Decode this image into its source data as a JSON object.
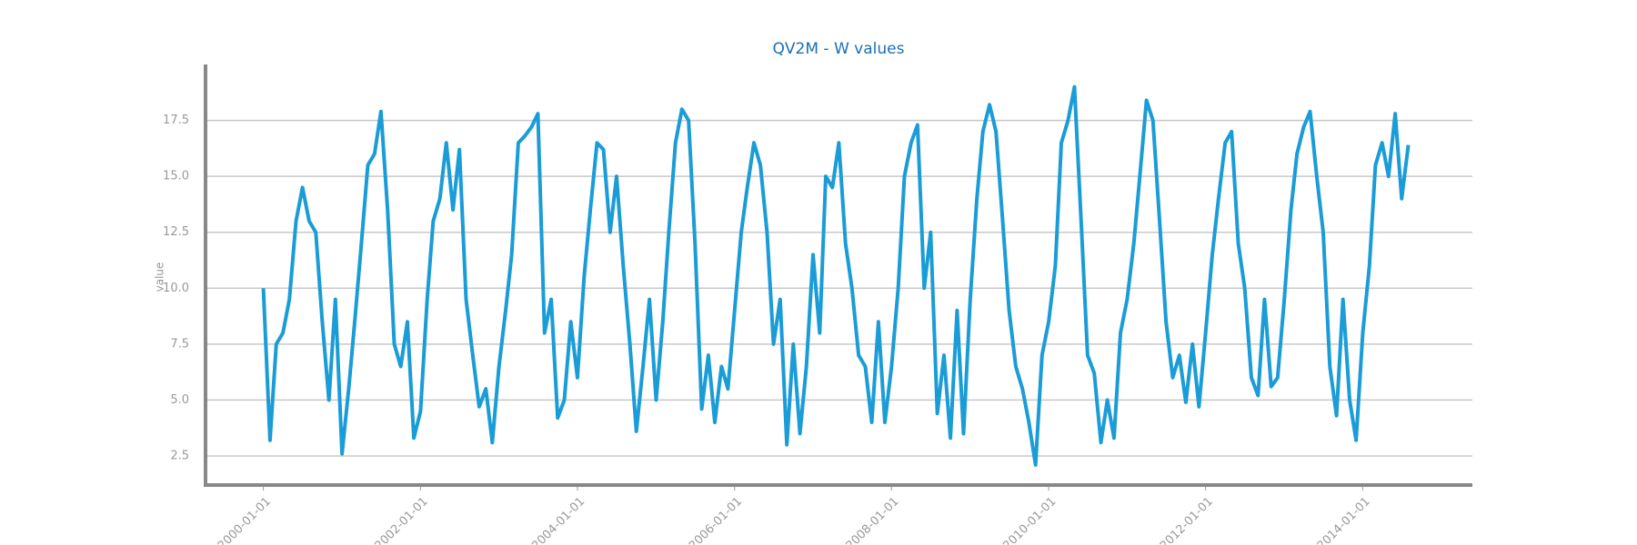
{
  "chart_data": {
    "type": "line",
    "title": "QV2M - W values",
    "y_label": "value",
    "color": "#1a9cd7",
    "x": [
      "2000-01-01",
      "2000-02-01",
      "2000-03-01",
      "2000-04-01",
      "2000-05-01",
      "2000-06-01",
      "2000-07-01",
      "2000-08-01",
      "2000-09-01",
      "2000-10-01",
      "2000-11-01",
      "2000-12-01",
      "2001-01-01",
      "2001-02-01",
      "2001-03-01",
      "2001-04-01",
      "2001-05-01",
      "2001-06-01",
      "2001-07-01",
      "2001-08-01",
      "2001-09-01",
      "2001-10-01",
      "2001-11-01",
      "2001-12-01",
      "2002-01-01",
      "2002-02-01",
      "2002-03-01",
      "2002-04-01",
      "2002-05-01",
      "2002-06-01",
      "2002-07-01",
      "2002-08-01",
      "2002-09-01",
      "2002-10-01",
      "2002-11-01",
      "2002-12-01",
      "2003-01-01",
      "2003-02-01",
      "2003-03-01",
      "2003-04-01",
      "2003-05-01",
      "2003-06-01",
      "2003-07-01",
      "2003-08-01",
      "2003-09-01",
      "2003-10-01",
      "2003-11-01",
      "2003-12-01",
      "2004-01-01",
      "2004-02-01",
      "2004-03-01",
      "2004-04-01",
      "2004-05-01",
      "2004-06-01",
      "2004-07-01",
      "2004-08-01",
      "2004-09-01",
      "2004-10-01",
      "2004-11-01",
      "2004-12-01",
      "2005-01-01",
      "2005-02-01",
      "2005-03-01",
      "2005-04-01",
      "2005-05-01",
      "2005-06-01",
      "2005-07-01",
      "2005-08-01",
      "2005-09-01",
      "2005-10-01",
      "2005-11-01",
      "2005-12-01",
      "2006-01-01",
      "2006-02-01",
      "2006-03-01",
      "2006-04-01",
      "2006-05-01",
      "2006-06-01",
      "2006-07-01",
      "2006-08-01",
      "2006-09-01",
      "2006-10-01",
      "2006-11-01",
      "2006-12-01",
      "2007-01-01",
      "2007-02-01",
      "2007-03-01",
      "2007-04-01",
      "2007-05-01",
      "2007-06-01",
      "2007-07-01",
      "2007-08-01",
      "2007-09-01",
      "2007-10-01",
      "2007-11-01",
      "2007-12-01",
      "2008-01-01",
      "2008-02-01",
      "2008-03-01",
      "2008-04-01",
      "2008-05-01",
      "2008-06-01",
      "2008-07-01",
      "2008-08-01",
      "2008-09-01",
      "2008-10-01",
      "2008-11-01",
      "2008-12-01",
      "2009-01-01",
      "2009-02-01",
      "2009-03-01",
      "2009-04-01",
      "2009-05-01",
      "2009-06-01",
      "2009-07-01",
      "2009-08-01",
      "2009-09-01",
      "2009-10-01",
      "2009-11-01",
      "2009-12-01",
      "2010-01-01",
      "2010-02-01",
      "2010-03-01",
      "2010-04-01",
      "2010-05-01",
      "2010-06-01",
      "2010-07-01",
      "2010-08-01",
      "2010-09-01",
      "2010-10-01",
      "2010-11-01",
      "2010-12-01",
      "2011-01-01",
      "2011-02-01",
      "2011-03-01",
      "2011-04-01",
      "2011-05-01",
      "2011-06-01",
      "2011-07-01",
      "2011-08-01",
      "2011-09-01",
      "2011-10-01",
      "2011-11-01",
      "2011-12-01",
      "2012-01-01",
      "2012-02-01",
      "2012-03-01",
      "2012-04-01",
      "2012-05-01",
      "2012-06-01",
      "2012-07-01",
      "2012-08-01",
      "2012-09-01",
      "2012-10-01",
      "2012-11-01",
      "2012-12-01",
      "2013-01-01",
      "2013-02-01",
      "2013-03-01",
      "2013-04-01",
      "2013-05-01",
      "2013-06-01",
      "2013-07-01",
      "2013-08-01",
      "2013-09-01",
      "2013-10-01",
      "2013-11-01",
      "2013-12-01",
      "2014-01-01",
      "2014-02-01",
      "2014-03-01",
      "2014-04-01",
      "2014-05-01",
      "2014-06-01",
      "2014-07-01",
      "2014-08-01"
    ],
    "values": [
      10,
      3.2,
      7.5,
      8,
      9.5,
      13,
      14.5,
      13,
      12.5,
      8.5,
      5,
      9.5,
      2.6,
      5.5,
      8.5,
      12,
      15.5,
      16,
      17.9,
      13.5,
      7.5,
      6.5,
      8.5,
      3.3,
      4.5,
      9.5,
      13,
      14,
      16.5,
      13.5,
      16.2,
      9.5,
      7,
      4.7,
      5.5,
      3.1,
      6.5,
      9,
      11.5,
      16.5,
      16.8,
      17.2,
      17.8,
      8,
      9.5,
      4.2,
      5,
      8.5,
      6,
      10.5,
      13.5,
      16.5,
      16.2,
      12.5,
      15,
      11,
      7.5,
      3.6,
      6.5,
      9.5,
      5,
      8.5,
      12.5,
      16.5,
      18,
      17.5,
      12,
      4.6,
      7,
      4,
      6.5,
      5.5,
      9,
      12.5,
      14.5,
      16.5,
      15.5,
      12.5,
      7.5,
      9.5,
      3,
      7.5,
      3.5,
      6.5,
      11.5,
      8,
      15,
      14.5,
      16.5,
      12,
      10,
      7,
      6.5,
      4,
      8.5,
      4,
      6.5,
      10,
      15,
      16.5,
      17.3,
      10,
      12.5,
      4.4,
      7,
      3.3,
      9,
      3.5,
      9.5,
      14,
      17,
      18.2,
      17,
      13,
      9,
      6.5,
      5.5,
      4,
      2.1,
      7,
      8.5,
      11,
      16.5,
      17.5,
      19,
      13,
      7,
      6.2,
      3.1,
      5,
      3.3,
      8,
      9.5,
      12,
      15,
      18.4,
      17.5,
      13,
      8.5,
      6,
      7,
      4.9,
      7.5,
      4.7,
      8,
      11.5,
      14,
      16.5,
      17,
      12,
      10,
      6,
      5.2,
      9.5,
      5.6,
      6,
      9.5,
      13.5,
      16,
      17.2,
      17.9,
      15,
      12.5,
      6.5,
      4.3,
      9.5,
      5,
      3.2,
      8,
      11,
      15.5,
      16.5,
      15,
      17.8,
      14,
      16.4
    ],
    "xlim": [
      "1999-04-07",
      "2015-05-26"
    ],
    "xticks": [
      "2000-01-01",
      "2002-01-01",
      "2004-01-01",
      "2006-01-01",
      "2008-01-01",
      "2010-01-01",
      "2012-01-01",
      "2014-01-01"
    ],
    "ylim": [
      1.2,
      20
    ],
    "yticks": [
      2.5,
      {
        "value": 5,
        "label": "5.0"
      },
      7.5,
      {
        "value": 10,
        "label": "10.0"
      },
      12.5,
      {
        "value": 15,
        "label": "15.0"
      },
      17.5
    ],
    "grid": true
  }
}
